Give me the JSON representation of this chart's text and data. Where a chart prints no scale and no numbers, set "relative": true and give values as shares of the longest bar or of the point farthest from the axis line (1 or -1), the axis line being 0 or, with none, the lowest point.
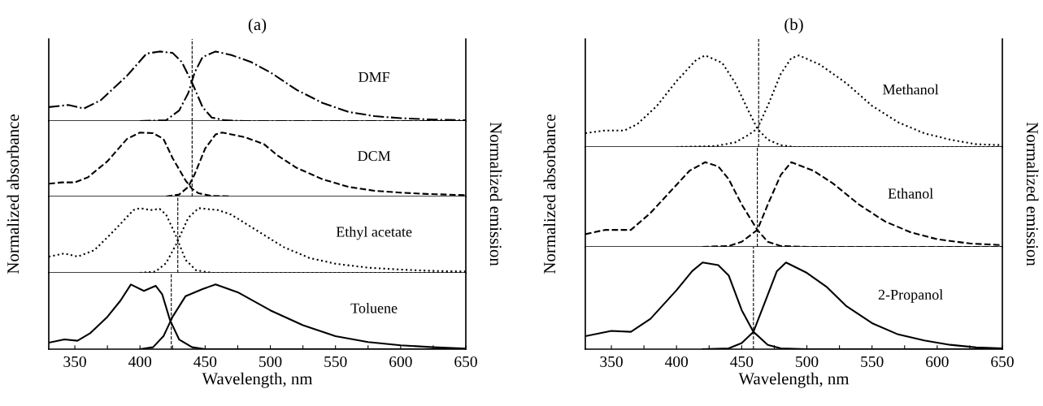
{
  "chart_data": [
    {
      "type": "line",
      "relative": true,
      "title": "(a)",
      "ylabel": "Normalized absorbance",
      "y2label": "Normalized emission",
      "xlim": [
        330,
        650
      ],
      "tick_labels": false,
      "line_style": "dashdot",
      "annotations": [
        "DMF"
      ],
      "ref_lines": [
        {
          "axis": "x",
          "value": 440,
          "line_style": "dashed",
          "color": "#000000"
        }
      ],
      "series": [
        {
          "color": "#000000",
          "x": [
            330,
            345,
            357,
            370,
            390,
            405,
            415,
            425,
            432,
            440,
            448,
            455,
            465,
            480,
            650
          ],
          "values": [
            0.2,
            0.23,
            0.18,
            0.3,
            0.65,
            0.97,
            1.0,
            0.98,
            0.85,
            0.55,
            0.2,
            0.05,
            0.01,
            0,
            0
          ]
        },
        {
          "color": "#000000",
          "x": [
            400,
            420,
            430,
            437,
            442,
            448,
            458,
            470,
            485,
            500,
            520,
            540,
            560,
            580,
            600,
            625,
            650
          ],
          "values": [
            0,
            0.01,
            0.15,
            0.4,
            0.7,
            0.92,
            1.0,
            0.95,
            0.85,
            0.7,
            0.45,
            0.26,
            0.13,
            0.07,
            0.04,
            0.02,
            0.01
          ]
        }
      ]
    },
    {
      "type": "line",
      "relative": true,
      "xlim": [
        330,
        650
      ],
      "tick_labels": false,
      "line_style": "dashed",
      "annotations": [
        "DCM"
      ],
      "ref_lines": [
        {
          "axis": "x",
          "value": 440,
          "line_style": "dashed",
          "color": "#000000"
        }
      ],
      "series": [
        {
          "color": "#000000",
          "x": [
            330,
            340,
            350,
            360,
            375,
            390,
            400,
            410,
            418,
            425,
            435,
            440,
            445,
            455,
            470
          ],
          "values": [
            0.2,
            0.22,
            0.22,
            0.3,
            0.55,
            0.9,
            1.0,
            0.99,
            0.9,
            0.6,
            0.25,
            0.12,
            0.05,
            0.01,
            0
          ]
        },
        {
          "color": "#000000",
          "x": [
            420,
            430,
            437,
            442,
            450,
            458,
            463,
            480,
            495,
            505,
            520,
            540,
            560,
            580,
            600,
            620,
            650
          ],
          "values": [
            0,
            0.03,
            0.15,
            0.35,
            0.75,
            0.97,
            1.0,
            0.93,
            0.82,
            0.65,
            0.45,
            0.27,
            0.15,
            0.09,
            0.06,
            0.04,
            0.02
          ]
        }
      ]
    },
    {
      "type": "line",
      "relative": true,
      "xlim": [
        330,
        650
      ],
      "tick_labels": false,
      "line_style": "dotted",
      "annotations": [
        "Ethyl acetate"
      ],
      "ref_lines": [
        {
          "axis": "x",
          "value": 429,
          "line_style": "dashed",
          "color": "#000000"
        }
      ],
      "series": [
        {
          "color": "#000000",
          "x": [
            330,
            342,
            352,
            365,
            380,
            395,
            400,
            408,
            415,
            420,
            427,
            435,
            443,
            455,
            650
          ],
          "values": [
            0.25,
            0.3,
            0.25,
            0.35,
            0.65,
            0.97,
            1.0,
            0.97,
            0.99,
            0.9,
            0.6,
            0.2,
            0.04,
            0,
            0
          ]
        },
        {
          "color": "#000000",
          "x": [
            400,
            412,
            420,
            428,
            437,
            445,
            460,
            470,
            490,
            510,
            530,
            550,
            575,
            600,
            625,
            650
          ],
          "values": [
            0,
            0.02,
            0.15,
            0.45,
            0.85,
            1.0,
            0.97,
            0.9,
            0.65,
            0.4,
            0.23,
            0.14,
            0.08,
            0.05,
            0.03,
            0.02
          ]
        }
      ]
    },
    {
      "type": "line",
      "relative": true,
      "xlabel": "Wavelength, nm",
      "xlim": [
        330,
        650
      ],
      "tick_labels": "x",
      "line_style": "solid",
      "annotations": [
        "Toluene"
      ],
      "xticks": [
        350,
        {
          "value": 375,
          "label": null
        },
        400,
        {
          "value": 425,
          "label": null
        },
        450,
        {
          "value": 475,
          "label": null
        },
        500,
        {
          "value": 525,
          "label": null
        },
        550,
        {
          "value": 575,
          "label": null
        },
        600,
        {
          "value": 625,
          "label": null
        },
        650
      ],
      "ref_lines": [
        {
          "axis": "x",
          "value": 424,
          "line_style": "dashed",
          "color": "#000000"
        }
      ],
      "series": [
        {
          "color": "#000000",
          "x": [
            330,
            342,
            352,
            362,
            375,
            385,
            393,
            403,
            412,
            417,
            423,
            430,
            440,
            450,
            650
          ],
          "values": [
            0.1,
            0.15,
            0.13,
            0.25,
            0.5,
            0.75,
            1.0,
            0.9,
            0.98,
            0.85,
            0.45,
            0.15,
            0.03,
            0,
            0
          ]
        },
        {
          "color": "#000000",
          "x": [
            400,
            410,
            418,
            425,
            435,
            448,
            458,
            475,
            500,
            525,
            550,
            575,
            600,
            625,
            650
          ],
          "values": [
            0,
            0.03,
            0.2,
            0.5,
            0.82,
            0.93,
            1.0,
            0.88,
            0.6,
            0.37,
            0.2,
            0.11,
            0.06,
            0.03,
            0.01
          ]
        }
      ]
    },
    {
      "type": "line",
      "relative": true,
      "title": "(b)",
      "ylabel": "Normalized absorbance",
      "y2label": "Normalized emission",
      "xlim": [
        330,
        650
      ],
      "tick_labels": false,
      "line_style": "dotted",
      "annotations": [
        "Methanol"
      ],
      "ref_lines": [
        {
          "axis": "x",
          "value": 463,
          "line_style": "dashed",
          "color": "#000000"
        }
      ],
      "series": [
        {
          "color": "#000000",
          "x": [
            330,
            345,
            360,
            370,
            385,
            400,
            415,
            422,
            435,
            445,
            455,
            462,
            470,
            480,
            490,
            650
          ],
          "values": [
            0.15,
            0.18,
            0.18,
            0.25,
            0.45,
            0.72,
            0.95,
            1.0,
            0.92,
            0.7,
            0.4,
            0.2,
            0.08,
            0.02,
            0,
            0
          ]
        },
        {
          "color": "#000000",
          "x": [
            400,
            430,
            445,
            455,
            462,
            470,
            480,
            488,
            494,
            510,
            530,
            550,
            570,
            590,
            610,
            630,
            650
          ],
          "values": [
            0,
            0.01,
            0.05,
            0.13,
            0.2,
            0.45,
            0.8,
            0.97,
            1.0,
            0.9,
            0.7,
            0.45,
            0.27,
            0.15,
            0.08,
            0.03,
            0.02
          ]
        }
      ]
    },
    {
      "type": "line",
      "relative": true,
      "xlim": [
        330,
        650
      ],
      "tick_labels": false,
      "line_style": "dashed",
      "annotations": [
        "Ethanol"
      ],
      "ref_lines": [
        {
          "axis": "x",
          "value": 462,
          "line_style": "dashed",
          "color": "#000000"
        }
      ],
      "series": [
        {
          "color": "#000000",
          "x": [
            330,
            345,
            365,
            380,
            395,
            410,
            422,
            432,
            440,
            450,
            462,
            470,
            480,
            500,
            650
          ],
          "values": [
            0.15,
            0.2,
            0.2,
            0.4,
            0.65,
            0.9,
            1.0,
            0.95,
            0.8,
            0.5,
            0.2,
            0.06,
            0.01,
            0,
            0
          ]
        },
        {
          "color": "#000000",
          "x": [
            420,
            440,
            450,
            462,
            470,
            480,
            488,
            505,
            520,
            540,
            560,
            580,
            600,
            625,
            650
          ],
          "values": [
            0,
            0.01,
            0.06,
            0.2,
            0.5,
            0.85,
            1.0,
            0.9,
            0.75,
            0.5,
            0.3,
            0.17,
            0.09,
            0.04,
            0.02
          ]
        }
      ]
    },
    {
      "type": "line",
      "relative": true,
      "xlabel": "Wavelength, nm",
      "xlim": [
        330,
        650
      ],
      "tick_labels": "x",
      "line_style": "solid",
      "annotations": [
        "2-Propanol"
      ],
      "xticks": [
        350,
        {
          "value": 375,
          "label": null
        },
        400,
        {
          "value": 425,
          "label": null
        },
        450,
        {
          "value": 475,
          "label": null
        },
        500,
        {
          "value": 525,
          "label": null
        },
        550,
        {
          "value": 575,
          "label": null
        },
        600,
        {
          "value": 625,
          "label": null
        },
        650
      ],
      "ref_lines": [
        {
          "axis": "x",
          "value": 459,
          "line_style": "dashed",
          "color": "#000000"
        }
      ],
      "series": [
        {
          "color": "#000000",
          "x": [
            330,
            350,
            365,
            380,
            400,
            412,
            420,
            432,
            440,
            450,
            459,
            470,
            480,
            500,
            650
          ],
          "values": [
            0.15,
            0.21,
            0.2,
            0.35,
            0.68,
            0.9,
            1.0,
            0.97,
            0.85,
            0.45,
            0.2,
            0.05,
            0.01,
            0,
            0
          ]
        },
        {
          "color": "#000000",
          "x": [
            420,
            440,
            450,
            459,
            468,
            477,
            484,
            500,
            515,
            530,
            550,
            570,
            590,
            610,
            630,
            650
          ],
          "values": [
            0,
            0.01,
            0.07,
            0.2,
            0.55,
            0.9,
            1.0,
            0.88,
            0.72,
            0.5,
            0.3,
            0.17,
            0.1,
            0.05,
            0.02,
            0.01
          ]
        }
      ]
    }
  ]
}
